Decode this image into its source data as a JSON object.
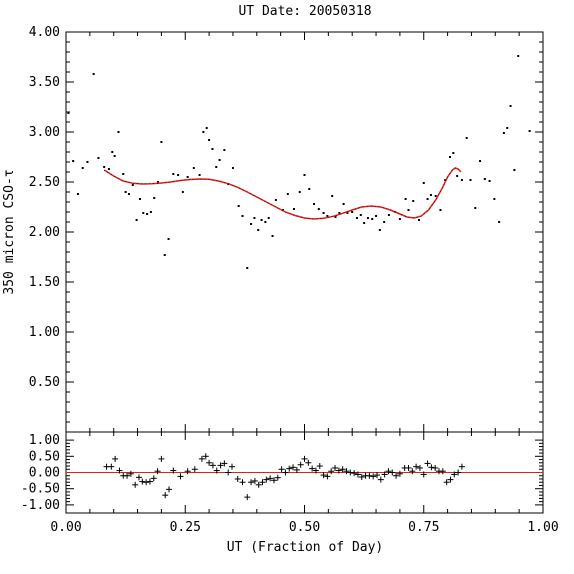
{
  "chart_data": [
    {
      "type": "scatter",
      "title": "UT Date: 20050318",
      "ylabel": "350 micron CSO-τ",
      "xlabel": "",
      "xlim": [
        0,
        1
      ],
      "ylim": [
        0,
        4
      ],
      "xticks": [
        "0.00",
        "0.25",
        "0.50",
        "0.75",
        "1.00"
      ],
      "yticks": [
        "0.50",
        "1.00",
        "1.50",
        "2.00",
        "2.50",
        "3.00",
        "3.50",
        "4.00"
      ],
      "grid": false,
      "series": [
        {
          "marker": "dot",
          "color": "#000000",
          "points": [
            [
              0.005,
              3.19
            ],
            [
              0.015,
              2.71
            ],
            [
              0.025,
              2.38
            ],
            [
              0.035,
              2.64
            ],
            [
              0.045,
              2.7
            ],
            [
              0.058,
              3.58
            ],
            [
              0.068,
              2.74
            ],
            [
              0.08,
              2.65
            ],
            [
              0.09,
              2.63
            ],
            [
              0.097,
              2.8
            ],
            [
              0.102,
              2.76
            ],
            [
              0.11,
              3.0
            ],
            [
              0.12,
              2.58
            ],
            [
              0.125,
              2.4
            ],
            [
              0.132,
              2.38
            ],
            [
              0.14,
              2.47
            ],
            [
              0.148,
              2.12
            ],
            [
              0.155,
              2.33
            ],
            [
              0.162,
              2.19
            ],
            [
              0.17,
              2.18
            ],
            [
              0.178,
              2.2
            ],
            [
              0.185,
              2.34
            ],
            [
              0.193,
              2.5
            ],
            [
              0.2,
              2.9
            ],
            [
              0.207,
              1.77
            ],
            [
              0.215,
              1.93
            ],
            [
              0.225,
              2.58
            ],
            [
              0.235,
              2.57
            ],
            [
              0.245,
              2.4
            ],
            [
              0.255,
              2.55
            ],
            [
              0.268,
              2.64
            ],
            [
              0.28,
              2.57
            ],
            [
              0.288,
              3.0
            ],
            [
              0.295,
              3.04
            ],
            [
              0.3,
              2.92
            ],
            [
              0.307,
              2.83
            ],
            [
              0.315,
              2.65
            ],
            [
              0.322,
              2.72
            ],
            [
              0.332,
              2.82
            ],
            [
              0.34,
              2.48
            ],
            [
              0.35,
              2.64
            ],
            [
              0.362,
              2.26
            ],
            [
              0.37,
              2.16
            ],
            [
              0.38,
              1.64
            ],
            [
              0.388,
              2.08
            ],
            [
              0.395,
              2.14
            ],
            [
              0.403,
              2.02
            ],
            [
              0.41,
              2.12
            ],
            [
              0.418,
              2.1
            ],
            [
              0.425,
              2.14
            ],
            [
              0.433,
              1.96
            ],
            [
              0.44,
              2.32
            ],
            [
              0.455,
              2.22
            ],
            [
              0.465,
              2.38
            ],
            [
              0.478,
              2.23
            ],
            [
              0.49,
              2.4
            ],
            [
              0.5,
              2.57
            ],
            [
              0.51,
              2.43
            ],
            [
              0.52,
              2.28
            ],
            [
              0.53,
              2.23
            ],
            [
              0.54,
              2.19
            ],
            [
              0.548,
              2.16
            ],
            [
              0.558,
              2.36
            ],
            [
              0.565,
              2.15
            ],
            [
              0.573,
              2.19
            ],
            [
              0.582,
              2.28
            ],
            [
              0.59,
              2.19
            ],
            [
              0.6,
              2.2
            ],
            [
              0.61,
              2.14
            ],
            [
              0.618,
              2.17
            ],
            [
              0.625,
              2.09
            ],
            [
              0.633,
              2.14
            ],
            [
              0.642,
              2.13
            ],
            [
              0.65,
              2.16
            ],
            [
              0.658,
              2.02
            ],
            [
              0.667,
              2.1
            ],
            [
              0.677,
              2.17
            ],
            [
              0.69,
              2.2
            ],
            [
              0.7,
              2.13
            ],
            [
              0.712,
              2.33
            ],
            [
              0.718,
              2.22
            ],
            [
              0.728,
              2.31
            ],
            [
              0.74,
              2.12
            ],
            [
              0.75,
              2.49
            ],
            [
              0.758,
              2.33
            ],
            [
              0.765,
              2.37
            ],
            [
              0.775,
              2.36
            ],
            [
              0.785,
              2.22
            ],
            [
              0.795,
              2.52
            ],
            [
              0.805,
              2.75
            ],
            [
              0.812,
              2.79
            ],
            [
              0.82,
              2.56
            ],
            [
              0.83,
              2.52
            ],
            [
              0.84,
              2.94
            ],
            [
              0.848,
              2.52
            ],
            [
              0.858,
              2.24
            ],
            [
              0.868,
              2.71
            ],
            [
              0.878,
              2.53
            ],
            [
              0.888,
              2.51
            ],
            [
              0.898,
              2.33
            ],
            [
              0.908,
              2.1
            ],
            [
              0.918,
              2.99
            ],
            [
              0.925,
              3.04
            ],
            [
              0.932,
              3.26
            ],
            [
              0.94,
              2.62
            ],
            [
              0.948,
              3.76
            ],
            [
              0.972,
              3.01
            ]
          ]
        },
        {
          "marker": "line",
          "color": "#e0201b",
          "points": [
            [
              0.08,
              2.62
            ],
            [
              0.1,
              2.56
            ],
            [
              0.12,
              2.51
            ],
            [
              0.14,
              2.487
            ],
            [
              0.16,
              2.48
            ],
            [
              0.18,
              2.483
            ],
            [
              0.2,
              2.49
            ],
            [
              0.22,
              2.5
            ],
            [
              0.24,
              2.515
            ],
            [
              0.26,
              2.525
            ],
            [
              0.28,
              2.53
            ],
            [
              0.3,
              2.527
            ],
            [
              0.32,
              2.51
            ],
            [
              0.34,
              2.483
            ],
            [
              0.36,
              2.447
            ],
            [
              0.38,
              2.4
            ],
            [
              0.4,
              2.35
            ],
            [
              0.42,
              2.3
            ],
            [
              0.44,
              2.25
            ],
            [
              0.46,
              2.2
            ],
            [
              0.48,
              2.165
            ],
            [
              0.5,
              2.14
            ],
            [
              0.52,
              2.13
            ],
            [
              0.54,
              2.137
            ],
            [
              0.56,
              2.157
            ],
            [
              0.58,
              2.187
            ],
            [
              0.6,
              2.22
            ],
            [
              0.62,
              2.25
            ],
            [
              0.64,
              2.26
            ],
            [
              0.66,
              2.25
            ],
            [
              0.68,
              2.22
            ],
            [
              0.7,
              2.18
            ],
            [
              0.715,
              2.15
            ],
            [
              0.73,
              2.14
            ],
            [
              0.745,
              2.16
            ],
            [
              0.76,
              2.22
            ],
            [
              0.775,
              2.32
            ],
            [
              0.79,
              2.45
            ],
            [
              0.8,
              2.55
            ],
            [
              0.81,
              2.62
            ],
            [
              0.816,
              2.64
            ],
            [
              0.822,
              2.63
            ],
            [
              0.828,
              2.6
            ]
          ]
        }
      ]
    },
    {
      "type": "scatter",
      "xlabel": "UT (Fraction of Day)",
      "ylabel": "",
      "xlim": [
        0,
        1
      ],
      "ylim": [
        -1.25,
        1.25
      ],
      "xticks": [
        "0.00",
        "0.25",
        "0.50",
        "0.75",
        "1.00"
      ],
      "yticks": [
        "1.00",
        "0.50",
        "0.00",
        "-0.50",
        "-1.00"
      ],
      "zero_line_color": "#e0201b",
      "series": [
        {
          "marker": "plus",
          "color": "#000000",
          "points": [
            [
              0.085,
              0.18
            ],
            [
              0.095,
              0.18
            ],
            [
              0.103,
              0.42
            ],
            [
              0.112,
              0.06
            ],
            [
              0.12,
              -0.1
            ],
            [
              0.128,
              -0.1
            ],
            [
              0.136,
              -0.04
            ],
            [
              0.145,
              -0.38
            ],
            [
              0.153,
              -0.15
            ],
            [
              0.16,
              -0.28
            ],
            [
              0.168,
              -0.3
            ],
            [
              0.176,
              -0.28
            ],
            [
              0.184,
              -0.18
            ],
            [
              0.192,
              0.04
            ],
            [
              0.2,
              0.42
            ],
            [
              0.208,
              -0.7
            ],
            [
              0.216,
              -0.52
            ],
            [
              0.225,
              0.06
            ],
            [
              0.24,
              -0.12
            ],
            [
              0.255,
              0.04
            ],
            [
              0.27,
              0.1
            ],
            [
              0.285,
              0.42
            ],
            [
              0.293,
              0.5
            ],
            [
              0.3,
              0.3
            ],
            [
              0.308,
              0.22
            ],
            [
              0.316,
              0.06
            ],
            [
              0.324,
              0.22
            ],
            [
              0.332,
              0.28
            ],
            [
              0.34,
              0.0
            ],
            [
              0.348,
              0.18
            ],
            [
              0.36,
              -0.2
            ],
            [
              0.37,
              -0.3
            ],
            [
              0.38,
              -0.76
            ],
            [
              0.388,
              -0.3
            ],
            [
              0.396,
              -0.26
            ],
            [
              0.404,
              -0.38
            ],
            [
              0.412,
              -0.3
            ],
            [
              0.42,
              -0.22
            ],
            [
              0.428,
              -0.18
            ],
            [
              0.436,
              -0.24
            ],
            [
              0.444,
              -0.16
            ],
            [
              0.452,
              0.1
            ],
            [
              0.46,
              0.0
            ],
            [
              0.468,
              0.12
            ],
            [
              0.476,
              0.16
            ],
            [
              0.484,
              0.08
            ],
            [
              0.492,
              0.24
            ],
            [
              0.5,
              0.42
            ],
            [
              0.508,
              0.3
            ],
            [
              0.516,
              0.12
            ],
            [
              0.524,
              0.06
            ],
            [
              0.532,
              0.2
            ],
            [
              0.54,
              -0.08
            ],
            [
              0.548,
              -0.12
            ],
            [
              0.556,
              0.04
            ],
            [
              0.564,
              0.14
            ],
            [
              0.572,
              0.06
            ],
            [
              0.58,
              0.1
            ],
            [
              0.588,
              0.04
            ],
            [
              0.596,
              0.0
            ],
            [
              0.604,
              -0.02
            ],
            [
              0.612,
              -0.06
            ],
            [
              0.62,
              -0.14
            ],
            [
              0.628,
              -0.1
            ],
            [
              0.636,
              -0.1
            ],
            [
              0.644,
              -0.12
            ],
            [
              0.652,
              -0.08
            ],
            [
              0.66,
              -0.22
            ],
            [
              0.668,
              -0.06
            ],
            [
              0.676,
              0.04
            ],
            [
              0.684,
              0.0
            ],
            [
              0.692,
              -0.1
            ],
            [
              0.7,
              -0.04
            ],
            [
              0.71,
              0.14
            ],
            [
              0.718,
              0.14
            ],
            [
              0.726,
              0.04
            ],
            [
              0.734,
              0.18
            ],
            [
              0.742,
              0.14
            ],
            [
              0.75,
              -0.06
            ],
            [
              0.758,
              0.28
            ],
            [
              0.766,
              0.16
            ],
            [
              0.774,
              0.14
            ],
            [
              0.782,
              0.04
            ],
            [
              0.79,
              0.04
            ],
            [
              0.798,
              -0.3
            ],
            [
              0.806,
              -0.22
            ],
            [
              0.814,
              -0.06
            ],
            [
              0.822,
              0.0
            ],
            [
              0.83,
              0.18
            ]
          ]
        }
      ]
    }
  ]
}
